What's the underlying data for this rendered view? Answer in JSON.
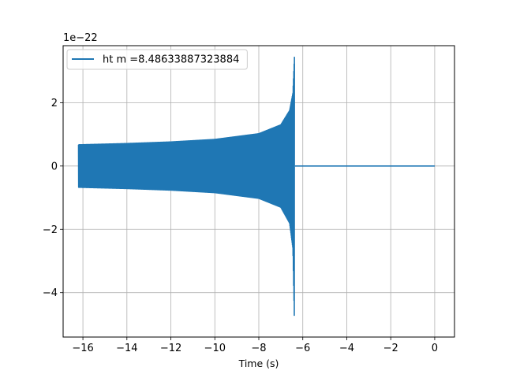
{
  "chart_data": {
    "type": "line",
    "title": "",
    "xlabel": "Time (s)",
    "ylabel": "",
    "y_offset_label": "1e−22",
    "xlim": [
      -16.9,
      0.9
    ],
    "ylim": [
      -5.4,
      3.8
    ],
    "xticks": [
      -16,
      -14,
      -12,
      -10,
      -8,
      -6,
      -4,
      -2,
      0
    ],
    "xtick_labels": [
      "−16",
      "−14",
      "−12",
      "−10",
      "−8",
      "−6",
      "−4",
      "−2",
      "0"
    ],
    "yticks": [
      -4,
      -2,
      0,
      2
    ],
    "ytick_labels": [
      "−4",
      "−2",
      "0",
      "2"
    ],
    "grid": true,
    "legend_position": "upper-left",
    "series": [
      {
        "name": "ht m =8.48633887323884",
        "color": "#1f77b4",
        "description_points": {
          "envelope_upper": [
            [
              -16.2,
              0.67
            ],
            [
              -14,
              0.71
            ],
            [
              -12,
              0.76
            ],
            [
              -10,
              0.84
            ],
            [
              -8,
              1.02
            ],
            [
              -7,
              1.3
            ],
            [
              -6.6,
              1.75
            ],
            [
              -6.45,
              2.3
            ],
            [
              -6.38,
              3.45
            ]
          ],
          "envelope_lower": [
            [
              -16.2,
              -0.67
            ],
            [
              -14,
              -0.71
            ],
            [
              -12,
              -0.76
            ],
            [
              -10,
              -0.84
            ],
            [
              -8,
              -1.02
            ],
            [
              -7,
              -1.3
            ],
            [
              -6.6,
              -1.8
            ],
            [
              -6.45,
              -2.6
            ],
            [
              -6.38,
              -4.95
            ]
          ],
          "flat": [
            [
              -6.35,
              0.0
            ],
            [
              0.0,
              0.0
            ]
          ]
        }
      }
    ]
  }
}
